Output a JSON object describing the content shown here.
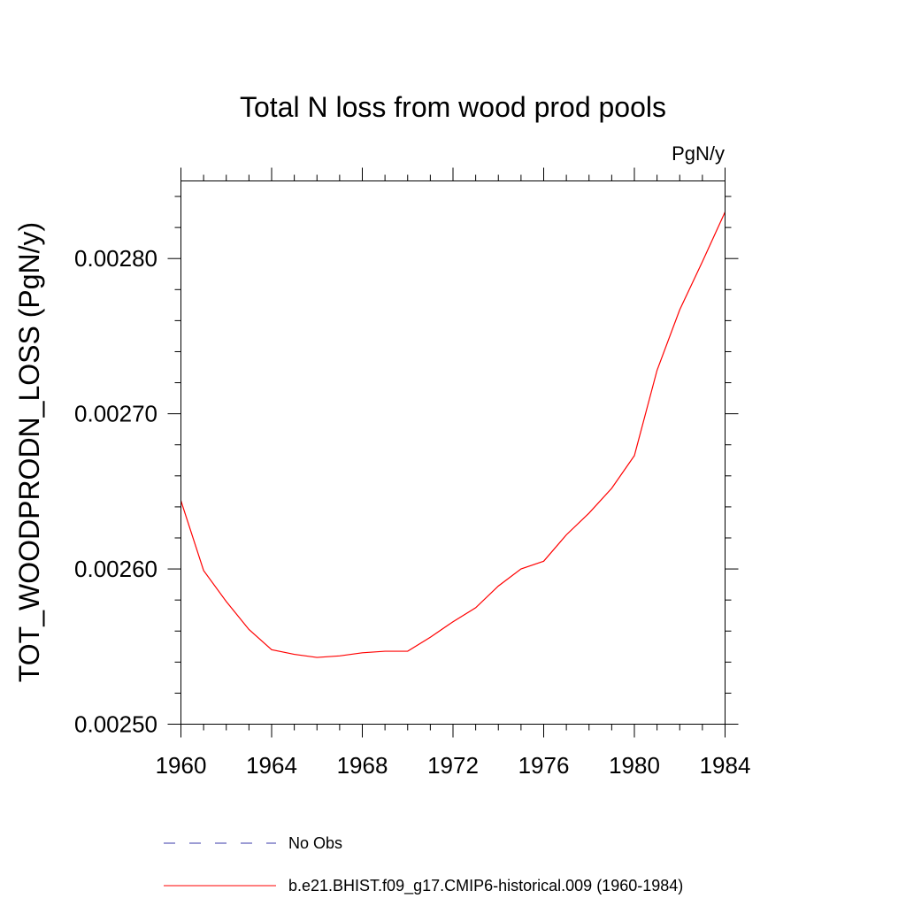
{
  "chart_data": {
    "type": "line",
    "title": "Total N loss from wood prod pools",
    "units": "PgN/y",
    "ylabel": "TOT_WOODPRODN_LOSS  (PgN/y)",
    "xlabel": "",
    "xlim": [
      1960,
      1984
    ],
    "ylim": [
      0.0025,
      0.00285
    ],
    "x_ticks": [
      1960,
      1964,
      1968,
      1972,
      1976,
      1980,
      1984
    ],
    "x_tick_labels": [
      "1960",
      "1964",
      "1968",
      "1972",
      "1976",
      "1980",
      "1984"
    ],
    "y_ticks": [
      0.0025,
      0.0026,
      0.0027,
      0.0028
    ],
    "y_tick_labels": [
      "0.00250",
      "0.00260",
      "0.00270",
      "0.00280"
    ],
    "grid": false,
    "legend_position": "bottom",
    "series": [
      {
        "name": "No Obs",
        "color": "#3a3aa8",
        "dash": "dashed",
        "x": [],
        "y": []
      },
      {
        "name": "b.e21.BHIST.f09_g17.CMIP6-historical.009 (1960-1984)",
        "color": "#ff0000",
        "dash": "solid",
        "x": [
          1960,
          1961,
          1962,
          1963,
          1964,
          1965,
          1966,
          1967,
          1968,
          1969,
          1970,
          1971,
          1972,
          1973,
          1974,
          1975,
          1976,
          1977,
          1978,
          1979,
          1980,
          1981,
          1982,
          1983,
          1984
        ],
        "y": [
          0.002644,
          0.002599,
          0.002579,
          0.002561,
          0.002548,
          0.002545,
          0.002543,
          0.002544,
          0.002546,
          0.002547,
          0.002547,
          0.002556,
          0.002566,
          0.002575,
          0.002589,
          0.0026,
          0.002605,
          0.002622,
          0.002636,
          0.002652,
          0.002673,
          0.002728,
          0.002767,
          0.002798,
          0.00283
        ]
      }
    ]
  }
}
